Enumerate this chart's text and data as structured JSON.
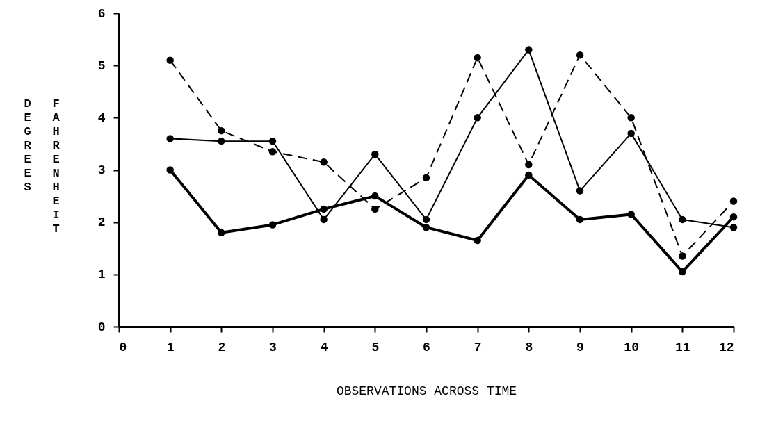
{
  "chart_data": {
    "type": "line",
    "xlabel": "OBSERVATIONS ACROSS TIME",
    "ylabel": "DEGREES FAHRENHEIT",
    "x": [
      1,
      2,
      3,
      4,
      5,
      6,
      7,
      8,
      9,
      10,
      11,
      12
    ],
    "series": [
      {
        "color": "#000000",
        "line_style": "solid",
        "values": [
          3.0,
          1.8,
          1.95,
          2.25,
          2.5,
          1.9,
          1.65,
          2.9,
          2.05,
          2.15,
          1.05,
          2.1
        ]
      },
      {
        "color": "#000000",
        "line_style": "solid",
        "values": [
          3.6,
          3.55,
          3.55,
          2.05,
          3.3,
          2.05,
          4.0,
          5.3,
          2.6,
          3.7,
          2.05,
          1.9
        ]
      },
      {
        "color": "#000000",
        "line_style": "dashed",
        "values": [
          5.1,
          3.75,
          3.35,
          3.15,
          2.25,
          2.85,
          5.15,
          3.1,
          5.2,
          4.0,
          1.35,
          2.4
        ]
      }
    ],
    "xlim": [
      0,
      12
    ],
    "xticks": [
      0,
      1,
      2,
      3,
      4,
      5,
      6,
      7,
      8,
      9,
      10,
      11,
      12
    ],
    "ylim": [
      0,
      6
    ],
    "yticks": [
      0,
      1,
      2,
      3,
      4,
      5,
      6
    ],
    "grid": false,
    "marker": "circle"
  }
}
